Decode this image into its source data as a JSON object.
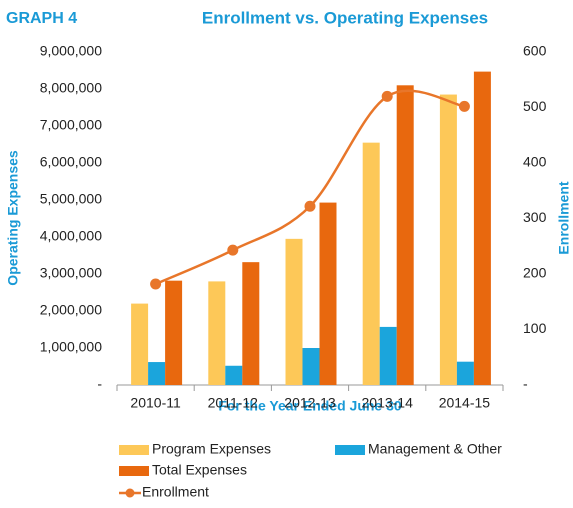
{
  "chart_data": {
    "type": "bar-line",
    "label": "GRAPH 4",
    "title": "Enrollment vs. Operating Expenses",
    "xlabel": "For the Year Ended June 30",
    "ylabel": "Operating Expenses",
    "y2label": "Enrollment",
    "categories": [
      "2010-11",
      "2011-12",
      "2012-13",
      "2013-14",
      "2014-15"
    ],
    "series": [
      {
        "name": "Program Expenses",
        "color": "#fdc858",
        "type": "bar",
        "values": [
          2200000,
          2800000,
          3950000,
          6550000,
          7850000
        ]
      },
      {
        "name": "Management & Other",
        "color": "#1ba5dc",
        "type": "bar",
        "values": [
          620000,
          520000,
          1000000,
          1570000,
          630000
        ]
      },
      {
        "name": "Total Expenses",
        "color": "#e8680e",
        "type": "bar",
        "values": [
          2820000,
          3320000,
          4930000,
          8100000,
          8470000
        ]
      },
      {
        "name": "Enrollment",
        "color": "#e8762a",
        "type": "line",
        "axis": "y2",
        "values": [
          182,
          243,
          322,
          520,
          502
        ]
      }
    ],
    "ylim": [
      0,
      9000000
    ],
    "yticks": [
      {
        "value": 0,
        "label": "-"
      },
      {
        "value": 1000000,
        "label": "1,000,000"
      },
      {
        "value": 2000000,
        "label": "2,000,000"
      },
      {
        "value": 3000000,
        "label": "3,000,000"
      },
      {
        "value": 4000000,
        "label": "4,000,000"
      },
      {
        "value": 5000000,
        "label": "5,000,000"
      },
      {
        "value": 6000000,
        "label": "6,000,000"
      },
      {
        "value": 7000000,
        "label": "7,000,000"
      },
      {
        "value": 8000000,
        "label": "8,000,000"
      },
      {
        "value": 9000000,
        "label": "9,000,000"
      }
    ],
    "y2lim": [
      0,
      600
    ],
    "y2ticks": [
      {
        "value": 0,
        "label": "-"
      },
      100,
      200,
      300,
      400,
      500,
      600
    ],
    "grid": false
  }
}
